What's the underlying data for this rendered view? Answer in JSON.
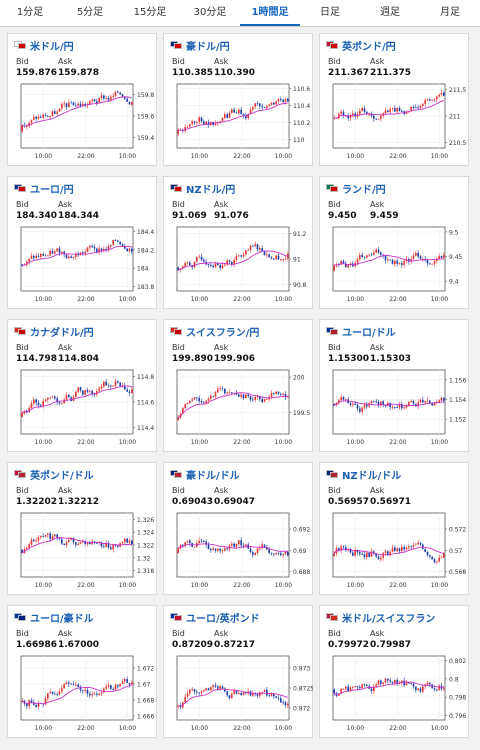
{
  "tabs": [
    {
      "label": "1分足"
    },
    {
      "label": "5分足"
    },
    {
      "label": "15分足"
    },
    {
      "label": "30分足"
    },
    {
      "label": "1時間足",
      "active": true
    },
    {
      "label": "日足"
    },
    {
      "label": "週足"
    },
    {
      "label": "月足"
    }
  ],
  "bid_label": "Bid",
  "ask_label": "Ask",
  "x_ticks": [
    "10:00",
    "22:00",
    "10:00"
  ],
  "colors": {
    "up": "#e53935",
    "down": "#1e3fae",
    "ma": "#cc33cc",
    "accent": "#1a5fb4"
  },
  "cards": [
    {
      "pair": "米ドル/円",
      "flag1": "#fff",
      "flag2": "#c00",
      "bid": "159.876",
      "ask": "159.878",
      "yticks": [
        "159.8",
        "159.6",
        "159.4"
      ],
      "ylim": [
        159.3,
        159.9
      ]
    },
    {
      "pair": "豪ドル/円",
      "flag1": "#00247d",
      "flag2": "#c00",
      "bid": "110.385",
      "ask": "110.390",
      "yticks": [
        "110.6",
        "110.4",
        "110.2",
        "110"
      ],
      "ylim": [
        109.9,
        110.65
      ]
    },
    {
      "pair": "英ポンド/円",
      "flag1": "#c8102e",
      "flag2": "#c00",
      "bid": "211.367",
      "ask": "211.375",
      "yticks": [
        "211.5",
        "211",
        "210.5"
      ],
      "ylim": [
        210.4,
        211.6
      ]
    },
    {
      "pair": "ユーロ/円",
      "flag1": "#003399",
      "flag2": "#c00",
      "bid": "184.340",
      "ask": "184.344",
      "yticks": [
        "184.4",
        "184.2",
        "184",
        "183.8"
      ],
      "ylim": [
        183.75,
        184.45
      ]
    },
    {
      "pair": "NZドル/円",
      "flag1": "#00247d",
      "flag2": "#c00",
      "bid": "91.069",
      "ask": "91.076",
      "yticks": [
        "91.2",
        "91",
        "90.8"
      ],
      "ylim": [
        90.75,
        91.25
      ]
    },
    {
      "pair": "ランド/円",
      "flag1": "#007a4d",
      "flag2": "#c00",
      "bid": "9.450",
      "ask": "9.459",
      "yticks": [
        "9.5",
        "9.45",
        "9.4"
      ],
      "ylim": [
        9.38,
        9.51
      ]
    },
    {
      "pair": "カナダドル/円",
      "flag1": "#d52b1e",
      "flag2": "#c00",
      "bid": "114.798",
      "ask": "114.804",
      "yticks": [
        "114.8",
        "114.6",
        "114.4"
      ],
      "ylim": [
        114.35,
        114.85
      ]
    },
    {
      "pair": "スイスフラン/円",
      "flag1": "#d52b1e",
      "flag2": "#c00",
      "bid": "199.890",
      "ask": "199.906",
      "yticks": [
        "200",
        "199.5"
      ],
      "ylim": [
        199.2,
        200.1
      ]
    },
    {
      "pair": "ユーロ/ドル",
      "flag1": "#003399",
      "flag2": "#b22234",
      "bid": "1.15300",
      "ask": "1.15303",
      "yticks": [
        "1.156",
        "1.154",
        "1.152"
      ],
      "ylim": [
        1.1505,
        1.157
      ]
    },
    {
      "pair": "英ポンド/ドル",
      "flag1": "#c8102e",
      "flag2": "#b22234",
      "bid": "1.32202",
      "ask": "1.32212",
      "yticks": [
        "1.326",
        "1.324",
        "1.322",
        "1.32",
        "1.318"
      ],
      "ylim": [
        1.317,
        1.327
      ]
    },
    {
      "pair": "豪ドル/ドル",
      "flag1": "#00247d",
      "flag2": "#b22234",
      "bid": "0.69043",
      "ask": "0.69047",
      "yticks": [
        "0.692",
        "0.69",
        "0.688"
      ],
      "ylim": [
        0.6875,
        0.6935
      ]
    },
    {
      "pair": "NZドル/ドル",
      "flag1": "#00247d",
      "flag2": "#b22234",
      "bid": "0.56957",
      "ask": "0.56971",
      "yticks": [
        "0.572",
        "0.57",
        "0.568"
      ],
      "ylim": [
        0.5675,
        0.5735
      ]
    },
    {
      "pair": "ユーロ/豪ドル",
      "flag1": "#003399",
      "flag2": "#00247d",
      "bid": "1.66986",
      "ask": "1.67000",
      "yticks": [
        "1.672",
        "1.67",
        "1.668",
        "1.666"
      ],
      "ylim": [
        1.6655,
        1.6735
      ]
    },
    {
      "pair": "ユーロ/英ポンド",
      "flag1": "#003399",
      "flag2": "#c8102e",
      "bid": "0.87209",
      "ask": "0.87217",
      "yticks": [
        "0.873",
        "0.8725",
        "0.872"
      ],
      "ylim": [
        0.8717,
        0.8733
      ]
    },
    {
      "pair": "米ドル/スイスフラン",
      "flag1": "#b22234",
      "flag2": "#d52b1e",
      "bid": "0.79972",
      "ask": "0.79987",
      "yticks": [
        "0.802",
        "0.8",
        "0.798",
        "0.796"
      ],
      "ylim": [
        0.7955,
        0.8025
      ]
    }
  ]
}
